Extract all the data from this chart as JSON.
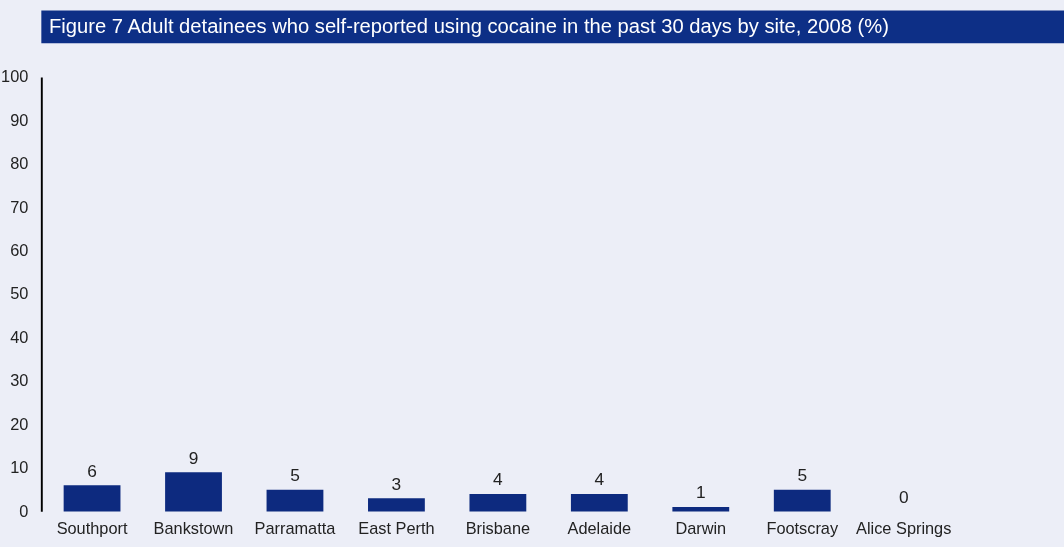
{
  "chart_data": {
    "type": "bar",
    "title": "Figure 7 Adult detainees who self-reported using cocaine in the past 30 days by site, 2008 (%)",
    "categories": [
      "Southport",
      "Bankstown",
      "Parramatta",
      "East Perth",
      "Brisbane",
      "Adelaide",
      "Darwin",
      "Footscray",
      "Alice Springs"
    ],
    "values": [
      6,
      9,
      5,
      3,
      4,
      4,
      1,
      5,
      0
    ],
    "color": "#0d2a7f",
    "ylim": [
      0,
      100
    ],
    "yticks": [
      0,
      10,
      20,
      30,
      40,
      50,
      60,
      70,
      80,
      90,
      100
    ],
    "grid": false,
    "data_labels": true
  }
}
